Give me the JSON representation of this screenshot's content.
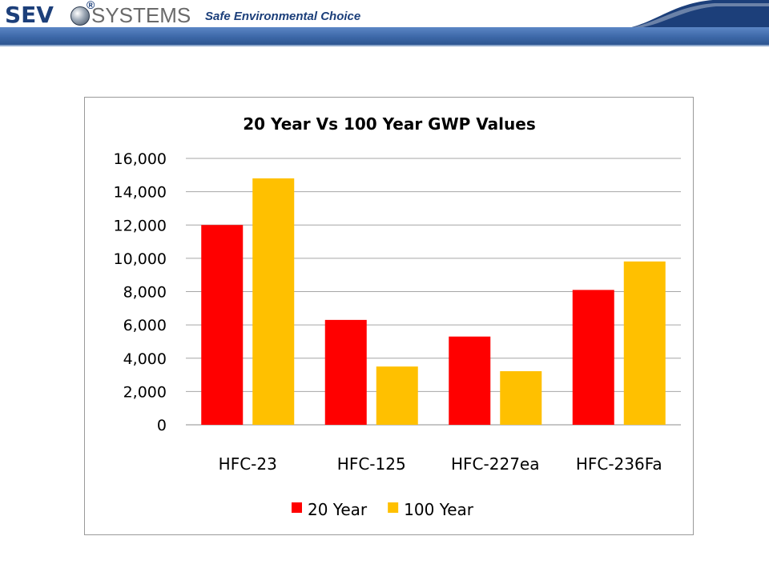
{
  "header": {
    "brand_primary": "SEV",
    "brand_registered": "®",
    "brand_secondary": "SYSTEMS",
    "tagline": "Safe Environmental Choice",
    "bar_color": "#3d68a8"
  },
  "chart_data": {
    "type": "bar",
    "title": "20 Year Vs 100 Year GWP Values",
    "xlabel": "",
    "ylabel": "",
    "categories": [
      "HFC-23",
      "HFC-125",
      "HFC-227ea",
      "HFC-236Fa"
    ],
    "series": [
      {
        "name": "20 Year",
        "color": "#ff0000",
        "values": [
          12000,
          6300,
          5300,
          8100
        ]
      },
      {
        "name": "100 Year",
        "color": "#ffc000",
        "values": [
          14800,
          3500,
          3220,
          9810
        ]
      }
    ],
    "ylim": [
      0,
      16000
    ],
    "yticks": [
      0,
      2000,
      4000,
      6000,
      8000,
      10000,
      12000,
      14000,
      16000
    ],
    "ytick_labels": [
      "0",
      "2,000",
      "4,000",
      "6,000",
      "8,000",
      "10,000",
      "12,000",
      "14,000",
      "16,000"
    ],
    "grid": true,
    "legend": "bottom"
  }
}
